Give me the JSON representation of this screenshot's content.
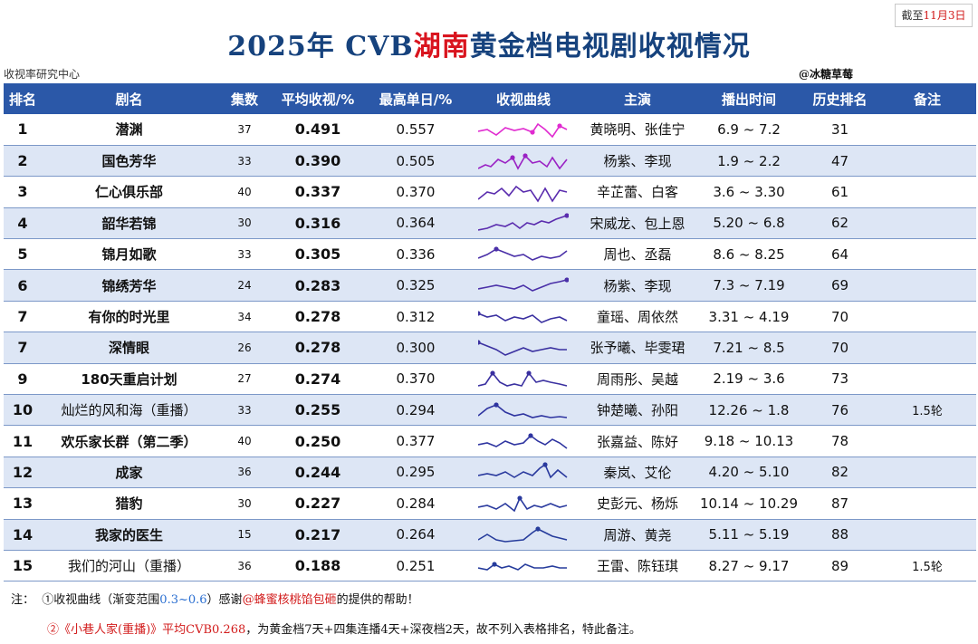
{
  "header": {
    "date_prefix": "截至",
    "date_value": "11月3日",
    "title_prefix": "2025年 CVB",
    "title_highlight": "湖南",
    "title_suffix": "黄金档电视剧收视情况",
    "source": "收视率研究中心",
    "author": "@冰糖草莓"
  },
  "table": {
    "columns": [
      "排名",
      "剧名",
      "集数",
      "平均收视/%",
      "最高单日/%",
      "收视曲线",
      "主演",
      "播出时间",
      "历史排名",
      "备注"
    ],
    "rows": [
      {
        "rank": "1",
        "name": "潜渊",
        "eps": "37",
        "avg": "0.491",
        "peak": "0.557",
        "cast": "黄晓明、张佳宁",
        "period": "6.9 ~ 7.2",
        "hist": "31",
        "note": "",
        "bold": true,
        "color": "#e02bd0"
      },
      {
        "rank": "2",
        "name": "国色芳华",
        "eps": "33",
        "avg": "0.390",
        "peak": "0.505",
        "cast": "杨紫、李现",
        "period": "1.9 ~ 2.2",
        "hist": "47",
        "note": "",
        "bold": true,
        "color": "#9a22c4"
      },
      {
        "rank": "3",
        "name": "仁心俱乐部",
        "eps": "40",
        "avg": "0.337",
        "peak": "0.370",
        "cast": "辛芷蕾、白客",
        "period": "3.6 ~ 3.30",
        "hist": "61",
        "note": "",
        "bold": true,
        "color": "#5a2cae"
      },
      {
        "rank": "4",
        "name": "韶华若锦",
        "eps": "30",
        "avg": "0.316",
        "peak": "0.364",
        "cast": "宋威龙、包上恩",
        "period": "5.20 ~ 6.8",
        "hist": "62",
        "note": "",
        "bold": true,
        "color": "#5a2cae"
      },
      {
        "rank": "5",
        "name": "锦月如歌",
        "eps": "33",
        "avg": "0.305",
        "peak": "0.336",
        "cast": "周也、丞磊",
        "period": "8.6 ~ 8.25",
        "hist": "64",
        "note": "",
        "bold": true,
        "color": "#4a30a8"
      },
      {
        "rank": "6",
        "name": "锦绣芳华",
        "eps": "24",
        "avg": "0.283",
        "peak": "0.325",
        "cast": "杨紫、李现",
        "period": "7.3 ~ 7.19",
        "hist": "69",
        "note": "",
        "bold": true,
        "color": "#4a30a8"
      },
      {
        "rank": "7",
        "name": "有你的时光里",
        "eps": "34",
        "avg": "0.278",
        "peak": "0.312",
        "cast": "童瑶、周依然",
        "period": "3.31 ~ 4.19",
        "hist": "70",
        "note": "",
        "bold": true,
        "color": "#3a30a0"
      },
      {
        "rank": "7",
        "name": "深情眼",
        "eps": "26",
        "avg": "0.278",
        "peak": "0.300",
        "cast": "张予曦、毕雯珺",
        "period": "7.21 ~ 8.5",
        "hist": "70",
        "note": "",
        "bold": true,
        "color": "#3a30a0"
      },
      {
        "rank": "9",
        "name": "180天重启计划",
        "eps": "27",
        "avg": "0.274",
        "peak": "0.370",
        "cast": "周雨彤、吴越",
        "period": "2.19 ~ 3.6",
        "hist": "73",
        "note": "",
        "bold": true,
        "color": "#3a30a0"
      },
      {
        "rank": "10",
        "name": "灿烂的风和海（重播）",
        "eps": "33",
        "avg": "0.255",
        "peak": "0.294",
        "cast": "钟楚曦、孙阳",
        "period": "12.26 ~ 1.8",
        "hist": "76",
        "note": "1.5轮",
        "bold": false,
        "color": "#2e34a0"
      },
      {
        "rank": "11",
        "name": "欢乐家长群（第二季）",
        "eps": "40",
        "avg": "0.250",
        "peak": "0.377",
        "cast": "张嘉益、陈好",
        "period": "9.18 ~ 10.13",
        "hist": "78",
        "note": "",
        "bold": true,
        "color": "#2e34a0"
      },
      {
        "rank": "12",
        "name": "成家",
        "eps": "36",
        "avg": "0.244",
        "peak": "0.295",
        "cast": "秦岚、艾伦",
        "period": "4.20 ~ 5.10",
        "hist": "82",
        "note": "",
        "bold": true,
        "color": "#2a3a9e"
      },
      {
        "rank": "13",
        "name": "猎豹",
        "eps": "30",
        "avg": "0.227",
        "peak": "0.284",
        "cast": "史彭元、杨烁",
        "period": "10.14 ~ 10.29",
        "hist": "87",
        "note": "",
        "bold": true,
        "color": "#2a3a9e"
      },
      {
        "rank": "14",
        "name": "我家的医生",
        "eps": "15",
        "avg": "0.217",
        "peak": "0.264",
        "cast": "周游、黄尧",
        "period": "5.11 ~ 5.19",
        "hist": "88",
        "note": "",
        "bold": true,
        "color": "#263c9c"
      },
      {
        "rank": "15",
        "name": "我们的河山（重播）",
        "eps": "36",
        "avg": "0.188",
        "peak": "0.251",
        "cast": "王雷、陈钰琪",
        "period": "8.27 ~ 9.17",
        "hist": "89",
        "note": "1.5轮",
        "bold": false,
        "color": "#263c9c"
      }
    ]
  },
  "notes": {
    "label": "注：",
    "line1_a": "①收视曲线（渐变范围",
    "line1_range": "0.3~0.6",
    "line1_b": "）感谢",
    "line1_credit": "@蜂蜜核桃馅包砸",
    "line1_c": "的提供的帮助！",
    "line2_red": "②《小巷人家(重播)》平均CVB0.268",
    "line2_rest": "，为黄金档7天+四集连播4天+深夜档2天，故不列入表格排名，特此备注。"
  }
}
